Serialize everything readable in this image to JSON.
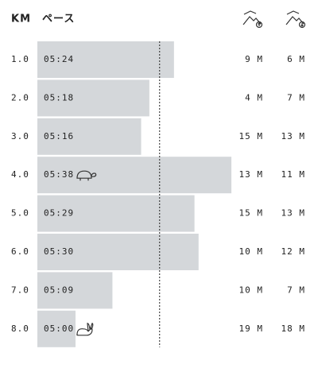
{
  "header": {
    "km": "KM",
    "pace": "ペース"
  },
  "rows": [
    {
      "km": "1.0",
      "pace": "05:24",
      "ascent": "9 M",
      "descent": "6 M"
    },
    {
      "km": "2.0",
      "pace": "05:18",
      "ascent": "4 M",
      "descent": "7 M"
    },
    {
      "km": "3.0",
      "pace": "05:16",
      "ascent": "15 M",
      "descent": "13 M"
    },
    {
      "km": "4.0",
      "pace": "05:38",
      "ascent": "13 M",
      "descent": "11 M"
    },
    {
      "km": "5.0",
      "pace": "05:29",
      "ascent": "15 M",
      "descent": "13 M"
    },
    {
      "km": "6.0",
      "pace": "05:30",
      "ascent": "10 M",
      "descent": "12 M"
    },
    {
      "km": "7.0",
      "pace": "05:09",
      "ascent": "10 M",
      "descent": "7 M"
    },
    {
      "km": "8.0",
      "pace": "05:00",
      "ascent": "19 M",
      "descent": "18 M"
    }
  ]
}
